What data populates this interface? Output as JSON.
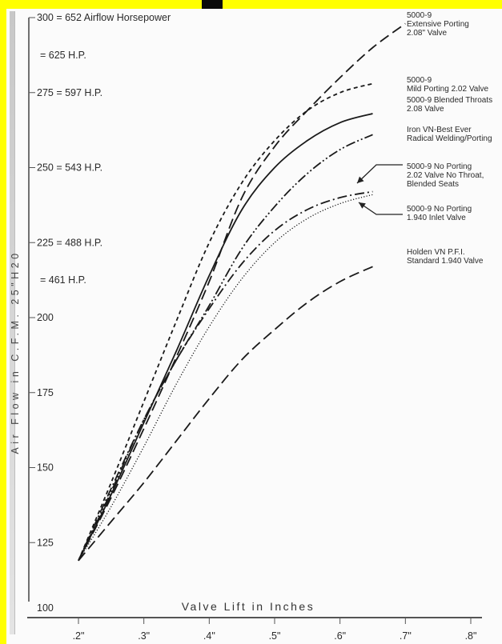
{
  "chart_data": {
    "type": "line",
    "xlabel": "Valve Lift in Inches",
    "ylabel": "Air Flow in C.F.M. 25\"H20",
    "xlim": [
      0.2,
      0.8
    ],
    "ylim": [
      100,
      300
    ],
    "x_tick_labels": [
      ".2\"",
      ".3\"",
      ".4\"",
      ".5\"",
      ".6\"",
      ".7\"",
      ".8\""
    ],
    "x_tick_values": [
      0.2,
      0.3,
      0.4,
      0.5,
      0.6,
      0.7,
      0.8
    ],
    "y_tick_labels": [
      "300 = 652 Airflow Horsepower",
      "275 = 597 H.P.",
      "250 = 543 H.P.",
      "225 = 488 H.P.",
      "200",
      "175",
      "150",
      "125",
      "100"
    ],
    "y_tick_values": [
      300,
      275,
      250,
      225,
      200,
      175,
      150,
      125,
      100
    ],
    "hp_annotations": [
      {
        "text": "= 625 H.P.",
        "y": 287.5
      },
      {
        "text": "= 461 H.P.",
        "y": 212.5
      }
    ],
    "series": [
      {
        "name": "5000-9\nExtensive Porting\n2.08\" Valve",
        "style": "long-dash",
        "x": [
          0.2,
          0.25,
          0.3,
          0.35,
          0.4,
          0.45,
          0.5,
          0.55,
          0.6,
          0.65,
          0.7
        ],
        "y": [
          119,
          140,
          163,
          187,
          212,
          240,
          257,
          269,
          280,
          290,
          298
        ]
      },
      {
        "name": "5000-9\nMild Porting 2.02 Valve",
        "style": "short-dash",
        "x": [
          0.2,
          0.25,
          0.3,
          0.35,
          0.4,
          0.45,
          0.5,
          0.55,
          0.6,
          0.65
        ],
        "y": [
          119,
          145,
          172,
          199,
          225,
          245,
          259,
          269,
          275,
          278
        ]
      },
      {
        "name": "5000-9 Blended Throats\n2.08 Valve",
        "style": "solid",
        "x": [
          0.2,
          0.25,
          0.3,
          0.35,
          0.4,
          0.45,
          0.5,
          0.55,
          0.6,
          0.65
        ],
        "y": [
          119,
          141,
          165,
          189,
          214,
          236,
          250,
          259,
          265,
          268
        ]
      },
      {
        "name": "Iron VN-Best Ever\nRadical Welding/Porting",
        "style": "dash-dot-dot",
        "x": [
          0.2,
          0.25,
          0.3,
          0.35,
          0.4,
          0.45,
          0.5,
          0.55,
          0.6,
          0.65
        ],
        "y": [
          119,
          142,
          166,
          186,
          204,
          223,
          237,
          248,
          256,
          261
        ]
      },
      {
        "name": "5000-9 No Porting\n2.02 Valve No Throat,\nBlended Seats",
        "style": "dash-dot",
        "x": [
          0.2,
          0.25,
          0.3,
          0.35,
          0.4,
          0.45,
          0.5,
          0.55,
          0.6,
          0.65
        ],
        "y": [
          119,
          143,
          166,
          186,
          203,
          218,
          229,
          236,
          240,
          242
        ]
      },
      {
        "name": "5000-9 No Porting\n1.940 Inlet Valve",
        "style": "dotted",
        "x": [
          0.2,
          0.25,
          0.3,
          0.35,
          0.4,
          0.45,
          0.5,
          0.55,
          0.6,
          0.65
        ],
        "y": [
          119,
          137,
          157,
          178,
          197,
          213,
          225,
          233,
          238,
          241
        ]
      },
      {
        "name": "Holden VN P.F.I.\nStandard 1.940 Valve",
        "style": "long-dash",
        "x": [
          0.2,
          0.25,
          0.3,
          0.35,
          0.4,
          0.45,
          0.5,
          0.55,
          0.6,
          0.65
        ],
        "y": [
          119,
          132,
          145,
          159,
          173,
          186,
          196,
          205,
          212,
          217
        ]
      }
    ],
    "legend_placement": "right, beside line ends",
    "grid": false,
    "colors": {
      "line": "#1a1a1a",
      "label_text": "#2a2a2a",
      "axis": "#555555",
      "page_margin": "#ffff00",
      "paper": "#fbfbfb"
    }
  }
}
